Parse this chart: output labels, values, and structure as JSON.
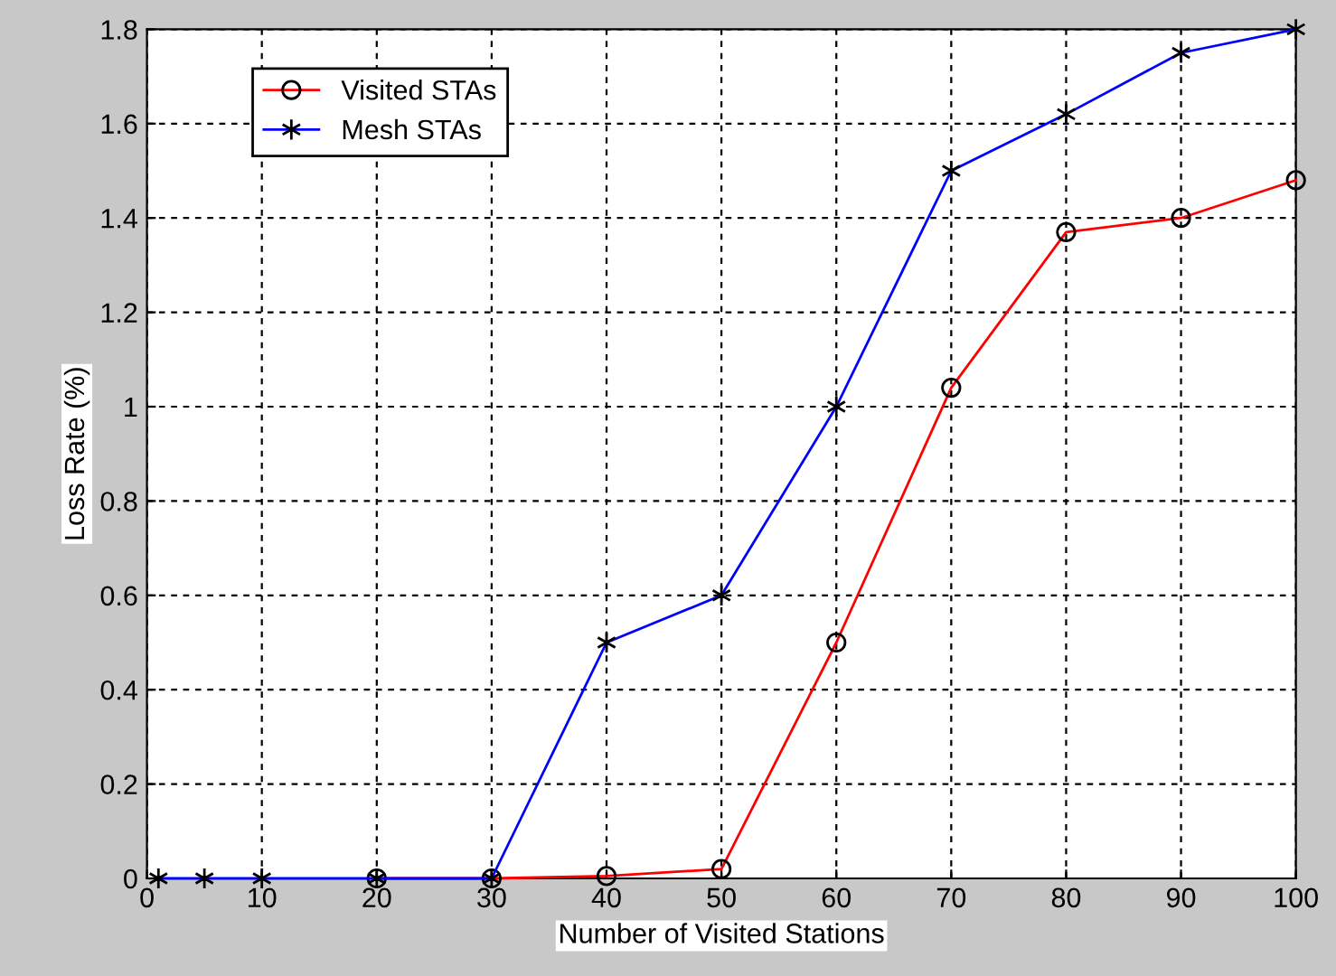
{
  "chart_data": {
    "type": "line",
    "xlabel": "Number of Visited Stations",
    "ylabel": "Loss Rate (%)",
    "x": [
      1,
      5,
      10,
      20,
      30,
      40,
      50,
      60,
      70,
      80,
      90,
      100
    ],
    "series": [
      {
        "name": "Visited STAs",
        "color": "#ff0000",
        "marker": "circle",
        "values": [
          null,
          null,
          null,
          0,
          0,
          0.005,
          0.02,
          0.5,
          1.04,
          1.37,
          1.4,
          1.48
        ]
      },
      {
        "name": "Mesh STAs",
        "color": "#0000ff",
        "marker": "cross",
        "values": [
          0,
          0,
          0,
          0,
          0,
          0.5,
          0.6,
          1.0,
          1.5,
          1.62,
          1.75,
          1.8
        ]
      }
    ],
    "xlim": [
      0,
      100
    ],
    "ylim": [
      0,
      1.8
    ],
    "xticks": [
      0,
      10,
      20,
      30,
      40,
      50,
      60,
      70,
      80,
      90,
      100
    ],
    "yticks": [
      0,
      0.2,
      0.4,
      0.6,
      0.8,
      1,
      1.2,
      1.4,
      1.6,
      1.8
    ],
    "grid": true,
    "legend": "top left",
    "line_style": "solid"
  }
}
